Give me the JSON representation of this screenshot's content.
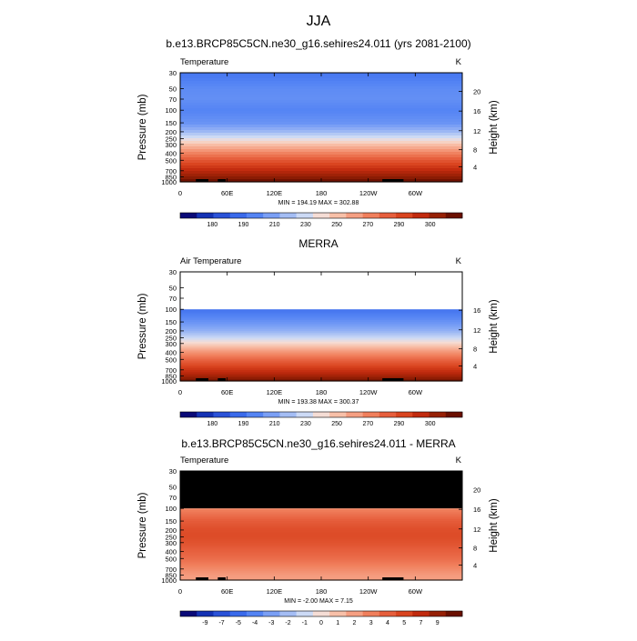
{
  "figure": {
    "title": "JJA"
  },
  "chart_data": [
    {
      "type": "heatmap",
      "title": "b.e13.BRCP85C5CN.ne30_g16.sehires24.011 (yrs 2081-2100)",
      "left_label": "Temperature",
      "units": "K",
      "ylabel": "Pressure (mb)",
      "y2label": "Height (km)",
      "x_ticks": [
        "0",
        "60E",
        "120E",
        "180",
        "120W",
        "60W"
      ],
      "x_tick_lon": [
        0,
        60,
        120,
        180,
        240,
        300
      ],
      "xlim": [
        0,
        360
      ],
      "y_ticks": [
        "30",
        "50",
        "70",
        "100",
        "150",
        "200",
        "250",
        "300",
        "400",
        "500",
        "700",
        "850",
        "1000"
      ],
      "y_tick_p": [
        30,
        50,
        70,
        100,
        150,
        200,
        250,
        300,
        400,
        500,
        700,
        850,
        1000
      ],
      "ylim": [
        30,
        1000
      ],
      "yscale": "log",
      "y2_ticks": [
        "20",
        "16",
        "12",
        "8",
        "4"
      ],
      "y2_tick_km": [
        20,
        16,
        12,
        8,
        4
      ],
      "min_max": "MIN = 194.19  MAX = 302.88",
      "colorbar_labels": [
        "180",
        "190",
        "210",
        "230",
        "250",
        "270",
        "290",
        "300"
      ],
      "colorbar_colors": [
        "#0a0a78",
        "#1432b4",
        "#2a52d8",
        "#3a6aeb",
        "#5484f4",
        "#7a9ff5",
        "#a4bdf4",
        "#ccdaf5",
        "#f5ddd5",
        "#f8c0a8",
        "#f59f82",
        "#f07f5c",
        "#e65e3c",
        "#d9441f",
        "#c12a0e",
        "#962005",
        "#6a1000"
      ],
      "levels": [
        {
          "p": 30,
          "value": 206
        },
        {
          "p": 50,
          "value": 212
        },
        {
          "p": 70,
          "value": 213
        },
        {
          "p": 100,
          "value": 210
        },
        {
          "p": 150,
          "value": 214
        },
        {
          "p": 200,
          "value": 224
        },
        {
          "p": 250,
          "value": 236
        },
        {
          "p": 300,
          "value": 247
        },
        {
          "p": 400,
          "value": 262
        },
        {
          "p": 500,
          "value": 272
        },
        {
          "p": 700,
          "value": 286
        },
        {
          "p": 850,
          "value": 293
        },
        {
          "p": 1000,
          "value": 301
        }
      ],
      "masked_above_p": null
    },
    {
      "type": "heatmap",
      "title": "MERRA",
      "left_label": "Air Temperature",
      "units": "K",
      "ylabel": "Pressure (mb)",
      "y2label": "Height (km)",
      "x_ticks": [
        "0",
        "60E",
        "120E",
        "180",
        "120W",
        "60W"
      ],
      "x_tick_lon": [
        0,
        60,
        120,
        180,
        240,
        300
      ],
      "xlim": [
        0,
        360
      ],
      "y_ticks": [
        "30",
        "50",
        "70",
        "100",
        "150",
        "200",
        "250",
        "300",
        "400",
        "500",
        "700",
        "850",
        "1000"
      ],
      "y_tick_p": [
        30,
        50,
        70,
        100,
        150,
        200,
        250,
        300,
        400,
        500,
        700,
        850,
        1000
      ],
      "ylim": [
        30,
        1000
      ],
      "yscale": "log",
      "y2_ticks": [
        "16",
        "12",
        "8",
        "4"
      ],
      "y2_tick_km": [
        16,
        12,
        8,
        4
      ],
      "min_max": "MIN = 193.38  MAX = 300.37",
      "colorbar_labels": [
        "180",
        "190",
        "210",
        "230",
        "250",
        "270",
        "290",
        "300"
      ],
      "colorbar_colors": [
        "#0a0a78",
        "#1432b4",
        "#2a52d8",
        "#3a6aeb",
        "#5484f4",
        "#7a9ff5",
        "#a4bdf4",
        "#ccdaf5",
        "#f5ddd5",
        "#f8c0a8",
        "#f59f82",
        "#f07f5c",
        "#e65e3c",
        "#d9441f",
        "#c12a0e",
        "#962005",
        "#6a1000"
      ],
      "levels": [
        {
          "p": 100,
          "value": 205
        },
        {
          "p": 150,
          "value": 214
        },
        {
          "p": 200,
          "value": 222
        },
        {
          "p": 250,
          "value": 232
        },
        {
          "p": 300,
          "value": 242
        },
        {
          "p": 400,
          "value": 258
        },
        {
          "p": 500,
          "value": 268
        },
        {
          "p": 700,
          "value": 282
        },
        {
          "p": 850,
          "value": 290
        },
        {
          "p": 1000,
          "value": 298
        }
      ],
      "masked_above_p": null
    },
    {
      "type": "heatmap",
      "title": "b.e13.BRCP85C5CN.ne30_g16.sehires24.011 - MERRA",
      "left_label": "Temperature",
      "units": "K",
      "ylabel": "Pressure (mb)",
      "y2label": "Height (km)",
      "x_ticks": [
        "0",
        "60E",
        "120E",
        "180",
        "120W",
        "60W"
      ],
      "x_tick_lon": [
        0,
        60,
        120,
        180,
        240,
        300
      ],
      "xlim": [
        0,
        360
      ],
      "y_ticks": [
        "30",
        "50",
        "70",
        "100",
        "150",
        "200",
        "250",
        "300",
        "400",
        "500",
        "700",
        "850",
        "1000"
      ],
      "y_tick_p": [
        30,
        50,
        70,
        100,
        150,
        200,
        250,
        300,
        400,
        500,
        700,
        850,
        1000
      ],
      "ylim": [
        30,
        1000
      ],
      "yscale": "log",
      "y2_ticks": [
        "20",
        "16",
        "12",
        "8",
        "4"
      ],
      "y2_tick_km": [
        20,
        16,
        12,
        8,
        4
      ],
      "min_max": "MIN =  -2.00  MAX =   7.15",
      "colorbar_labels": [
        "-9",
        "-7",
        "-5",
        "-4",
        "-3",
        "-2",
        "-1",
        "0",
        "1",
        "2",
        "3",
        "4",
        "5",
        "7",
        "9"
      ],
      "colorbar_colors": [
        "#0a0a78",
        "#1432b4",
        "#2a52d8",
        "#3a6aeb",
        "#5484f4",
        "#7a9ff5",
        "#a4bdf4",
        "#ccdaf5",
        "#f5ddd5",
        "#f8c0a8",
        "#f59f82",
        "#f07f5c",
        "#e65e3c",
        "#d9441f",
        "#c12a0e",
        "#962005",
        "#6a1000"
      ],
      "levels": [
        {
          "p": 100,
          "value": 3.2
        },
        {
          "p": 150,
          "value": 4.6
        },
        {
          "p": 200,
          "value": 5.2
        },
        {
          "p": 250,
          "value": 5.3
        },
        {
          "p": 300,
          "value": 5.0
        },
        {
          "p": 400,
          "value": 4.4
        },
        {
          "p": 500,
          "value": 4.0
        },
        {
          "p": 700,
          "value": 3.0
        },
        {
          "p": 850,
          "value": 2.4
        },
        {
          "p": 1000,
          "value": 2.2
        }
      ],
      "masked_above_p": 100
    }
  ]
}
